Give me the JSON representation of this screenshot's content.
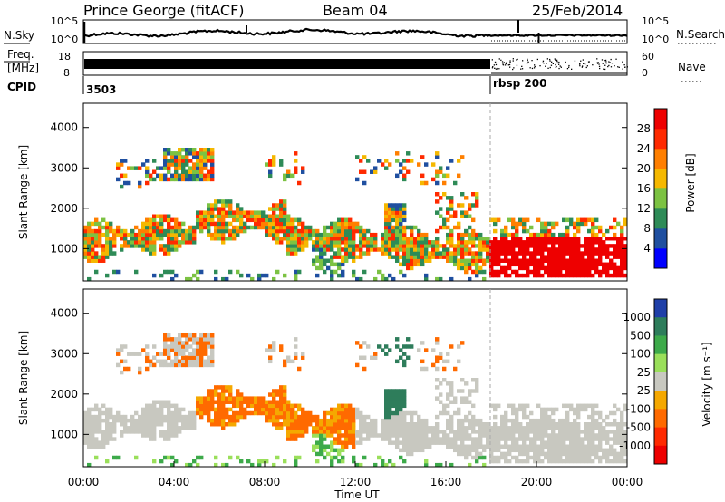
{
  "header": {
    "station": "Prince George (fitACF)",
    "beam": "Beam 04",
    "date": "25/Feb/2014"
  },
  "nsky_panel": {
    "left_label": "N.Sky",
    "right_label": "N.Search",
    "left_ticks": [
      "10^5",
      "10^0"
    ],
    "right_ticks": [
      "10^5",
      "10^0"
    ]
  },
  "freq_panel": {
    "left_label_1": "Freq.",
    "left_label_2": "[MHz]",
    "left_ticks": [
      "18",
      "8"
    ],
    "right_label": "Nave",
    "right_ticks": [
      "60",
      "0"
    ]
  },
  "cpid": {
    "label": "CPID",
    "entries": [
      {
        "text": "3503",
        "time": 0.0
      },
      {
        "text": "rbsp 200",
        "time": 18.0
      }
    ]
  },
  "chart_data": [
    {
      "type": "heatmap",
      "name": "power",
      "ylabel": "Slant Range [km]",
      "xlabel": "",
      "xlim": [
        0,
        24
      ],
      "ylim": [
        200,
        4600
      ],
      "yticks": [
        1000,
        2000,
        3000,
        4000
      ],
      "colorbar": {
        "label": "Power [dB]",
        "ticks": [
          4,
          8,
          12,
          16,
          20,
          24,
          28
        ],
        "range": [
          0,
          32
        ],
        "colors": [
          "#0000ff",
          "#1f4fa0",
          "#2e8b57",
          "#7cc242",
          "#f5b800",
          "#ff7f00",
          "#ff2a00",
          "#ee0000"
        ]
      }
    },
    {
      "type": "heatmap",
      "name": "velocity",
      "ylabel": "Slant Range [km]",
      "xlabel": "Time UT",
      "xlim": [
        0,
        24
      ],
      "ylim": [
        200,
        4600
      ],
      "yticks": [
        1000,
        2000,
        3000,
        4000
      ],
      "xticks": [
        "00:00",
        "04:00",
        "08:00",
        "12:00",
        "16:00",
        "20:00",
        "00:00"
      ],
      "colorbar": {
        "label": "Velocity [m s⁻¹]",
        "ticks": [
          "1000",
          "500",
          "100",
          "25",
          "-25",
          "-100",
          "-500",
          "-1000"
        ],
        "colors": [
          "#1f3fa8",
          "#2e7d5b",
          "#3daa4a",
          "#9adf5a",
          "#c8c8c0",
          "#f5a800",
          "#ff6a00",
          "#ff2a00",
          "#ee0000"
        ]
      }
    }
  ]
}
